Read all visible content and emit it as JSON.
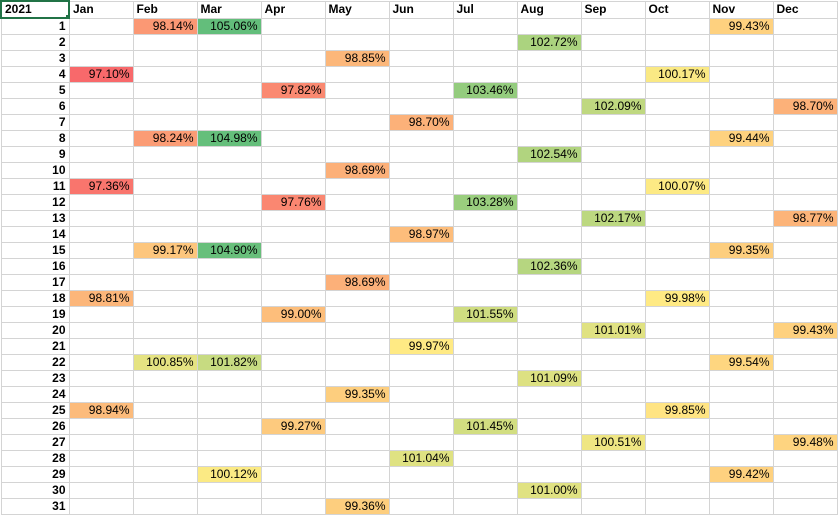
{
  "sheet": {
    "corner_label": "2021",
    "months": [
      "Jan",
      "Feb",
      "Mar",
      "Apr",
      "May",
      "Jun",
      "Jul",
      "Aug",
      "Sep",
      "Oct",
      "Nov",
      "Dec"
    ],
    "rows": [
      {
        "day": "1",
        "cells": [
          "",
          "98.14%",
          "105.06%",
          "",
          "",
          "",
          "",
          "",
          "",
          "",
          "99.43%",
          ""
        ]
      },
      {
        "day": "2",
        "cells": [
          "",
          "",
          "",
          "",
          "",
          "",
          "",
          "102.72%",
          "",
          "",
          "",
          ""
        ]
      },
      {
        "day": "3",
        "cells": [
          "",
          "",
          "",
          "",
          "98.85%",
          "",
          "",
          "",
          "",
          "",
          "",
          ""
        ]
      },
      {
        "day": "4",
        "cells": [
          "97.10%",
          "",
          "",
          "",
          "",
          "",
          "",
          "",
          "",
          "100.17%",
          "",
          ""
        ]
      },
      {
        "day": "5",
        "cells": [
          "",
          "",
          "",
          "97.82%",
          "",
          "",
          "103.46%",
          "",
          "",
          "",
          "",
          ""
        ]
      },
      {
        "day": "6",
        "cells": [
          "",
          "",
          "",
          "",
          "",
          "",
          "",
          "",
          "102.09%",
          "",
          "",
          "98.70%"
        ]
      },
      {
        "day": "7",
        "cells": [
          "",
          "",
          "",
          "",
          "",
          "98.70%",
          "",
          "",
          "",
          "",
          "",
          ""
        ]
      },
      {
        "day": "8",
        "cells": [
          "",
          "98.24%",
          "104.98%",
          "",
          "",
          "",
          "",
          "",
          "",
          "",
          "99.44%",
          ""
        ]
      },
      {
        "day": "9",
        "cells": [
          "",
          "",
          "",
          "",
          "",
          "",
          "",
          "102.54%",
          "",
          "",
          "",
          ""
        ]
      },
      {
        "day": "10",
        "cells": [
          "",
          "",
          "",
          "",
          "98.69%",
          "",
          "",
          "",
          "",
          "",
          "",
          ""
        ]
      },
      {
        "day": "11",
        "cells": [
          "97.36%",
          "",
          "",
          "",
          "",
          "",
          "",
          "",
          "",
          "100.07%",
          "",
          ""
        ]
      },
      {
        "day": "12",
        "cells": [
          "",
          "",
          "",
          "97.76%",
          "",
          "",
          "103.28%",
          "",
          "",
          "",
          "",
          ""
        ]
      },
      {
        "day": "13",
        "cells": [
          "",
          "",
          "",
          "",
          "",
          "",
          "",
          "",
          "102.17%",
          "",
          "",
          "98.77%"
        ]
      },
      {
        "day": "14",
        "cells": [
          "",
          "",
          "",
          "",
          "",
          "98.97%",
          "",
          "",
          "",
          "",
          "",
          ""
        ]
      },
      {
        "day": "15",
        "cells": [
          "",
          "99.17%",
          "104.90%",
          "",
          "",
          "",
          "",
          "",
          "",
          "",
          "99.35%",
          ""
        ]
      },
      {
        "day": "16",
        "cells": [
          "",
          "",
          "",
          "",
          "",
          "",
          "",
          "102.36%",
          "",
          "",
          "",
          ""
        ]
      },
      {
        "day": "17",
        "cells": [
          "",
          "",
          "",
          "",
          "98.69%",
          "",
          "",
          "",
          "",
          "",
          "",
          ""
        ]
      },
      {
        "day": "18",
        "cells": [
          "98.81%",
          "",
          "",
          "",
          "",
          "",
          "",
          "",
          "",
          "99.98%",
          "",
          ""
        ]
      },
      {
        "day": "19",
        "cells": [
          "",
          "",
          "",
          "99.00%",
          "",
          "",
          "101.55%",
          "",
          "",
          "",
          "",
          ""
        ]
      },
      {
        "day": "20",
        "cells": [
          "",
          "",
          "",
          "",
          "",
          "",
          "",
          "",
          "101.01%",
          "",
          "",
          "99.43%"
        ]
      },
      {
        "day": "21",
        "cells": [
          "",
          "",
          "",
          "",
          "",
          "99.97%",
          "",
          "",
          "",
          "",
          "",
          ""
        ]
      },
      {
        "day": "22",
        "cells": [
          "",
          "100.85%",
          "101.82%",
          "",
          "",
          "",
          "",
          "",
          "",
          "",
          "99.54%",
          ""
        ]
      },
      {
        "day": "23",
        "cells": [
          "",
          "",
          "",
          "",
          "",
          "",
          "",
          "101.09%",
          "",
          "",
          "",
          ""
        ]
      },
      {
        "day": "24",
        "cells": [
          "",
          "",
          "",
          "",
          "99.35%",
          "",
          "",
          "",
          "",
          "",
          "",
          ""
        ]
      },
      {
        "day": "25",
        "cells": [
          "98.94%",
          "",
          "",
          "",
          "",
          "",
          "",
          "",
          "",
          "99.85%",
          "",
          ""
        ]
      },
      {
        "day": "26",
        "cells": [
          "",
          "",
          "",
          "99.27%",
          "",
          "",
          "101.45%",
          "",
          "",
          "",
          "",
          ""
        ]
      },
      {
        "day": "27",
        "cells": [
          "",
          "",
          "",
          "",
          "",
          "",
          "",
          "",
          "100.51%",
          "",
          "",
          "99.48%"
        ]
      },
      {
        "day": "28",
        "cells": [
          "",
          "",
          "",
          "",
          "",
          "101.04%",
          "",
          "",
          "",
          "",
          "",
          ""
        ]
      },
      {
        "day": "29",
        "cells": [
          "",
          "",
          "100.12%",
          "",
          "",
          "",
          "",
          "",
          "",
          "",
          "99.42%",
          ""
        ]
      },
      {
        "day": "30",
        "cells": [
          "",
          "",
          "",
          "",
          "",
          "",
          "",
          "101.00%",
          "",
          "",
          "",
          ""
        ]
      },
      {
        "day": "31",
        "cells": [
          "",
          "",
          "",
          "",
          "99.36%",
          "",
          "",
          "",
          "",
          "",
          "",
          ""
        ]
      }
    ]
  },
  "colors": {
    "gridline": "#d4d4d4",
    "selection": "#217346",
    "scale_low": "#f8696b",
    "scale_mid": "#ffeb84",
    "scale_high": "#63be7b"
  }
}
